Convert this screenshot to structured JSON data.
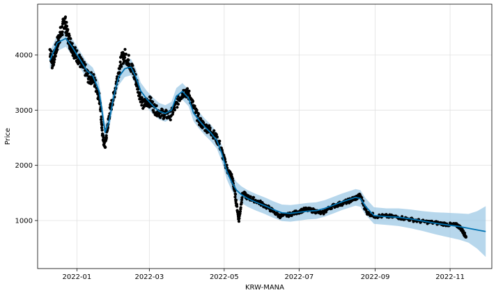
{
  "chart_data": {
    "type": "line",
    "title": "",
    "xlabel": "KRW-MANA",
    "ylabel": "Price",
    "x_tick_labels": [
      "2022-01",
      "2022-03",
      "2022-05",
      "2022-07",
      "2022-09",
      "2022-11"
    ],
    "x_tick_dates": [
      "2022-01-01",
      "2022-03-01",
      "2022-05-01",
      "2022-07-01",
      "2022-09-01",
      "2022-11-01"
    ],
    "y_ticks": [
      1000,
      2000,
      3000,
      4000
    ],
    "xlim": [
      "2021-11-30",
      "2022-12-05"
    ],
    "ylim": [
      130,
      4920
    ],
    "grid": true,
    "colors": {
      "forecast": "#0072B2",
      "band": "#9fc9e6",
      "observed": "#000000",
      "grid": "#e0e0e0",
      "axes": "#000000"
    },
    "series": [
      {
        "role": "forecast",
        "x": [
          "2021-12-10",
          "2021-12-16",
          "2021-12-23",
          "2021-12-28",
          "2022-01-04",
          "2022-01-09",
          "2022-01-14",
          "2022-01-19",
          "2022-01-22",
          "2022-01-24",
          "2022-01-27",
          "2022-01-31",
          "2022-02-04",
          "2022-02-09",
          "2022-02-14",
          "2022-02-18",
          "2022-02-22",
          "2022-02-27",
          "2022-03-04",
          "2022-03-09",
          "2022-03-14",
          "2022-03-19",
          "2022-03-23",
          "2022-03-28",
          "2022-04-02",
          "2022-04-06",
          "2022-04-10",
          "2022-04-15",
          "2022-04-20",
          "2022-04-25",
          "2022-04-29",
          "2022-05-03",
          "2022-05-07",
          "2022-05-11",
          "2022-05-15",
          "2022-05-20",
          "2022-05-27",
          "2022-06-03",
          "2022-06-10",
          "2022-06-17",
          "2022-06-24",
          "2022-07-01",
          "2022-07-08",
          "2022-07-15",
          "2022-07-22",
          "2022-07-29",
          "2022-08-05",
          "2022-08-12",
          "2022-08-16",
          "2022-08-20",
          "2022-08-24",
          "2022-08-31",
          "2022-09-10",
          "2022-09-20",
          "2022-09-30",
          "2022-10-10",
          "2022-10-20",
          "2022-10-30",
          "2022-11-09",
          "2022-11-16",
          "2022-11-23",
          "2022-11-30"
        ],
        "y": [
          3900,
          4220,
          4300,
          4150,
          3900,
          3720,
          3620,
          3350,
          2900,
          2600,
          2780,
          3250,
          3600,
          3750,
          3780,
          3600,
          3350,
          3200,
          3080,
          2980,
          2940,
          3000,
          3250,
          3340,
          3220,
          2950,
          2830,
          2700,
          2590,
          2450,
          2220,
          1900,
          1700,
          1550,
          1470,
          1400,
          1330,
          1270,
          1200,
          1140,
          1130,
          1150,
          1170,
          1180,
          1220,
          1280,
          1340,
          1390,
          1420,
          1400,
          1260,
          1090,
          1070,
          1060,
          1030,
          990,
          950,
          920,
          890,
          860,
          830,
          800
        ]
      },
      {
        "role": "uncertainty-upper",
        "x": [
          "2021-12-10",
          "2021-12-16",
          "2021-12-23",
          "2021-12-28",
          "2022-01-04",
          "2022-01-09",
          "2022-01-14",
          "2022-01-19",
          "2022-01-22",
          "2022-01-24",
          "2022-01-27",
          "2022-01-31",
          "2022-02-04",
          "2022-02-09",
          "2022-02-14",
          "2022-02-18",
          "2022-02-22",
          "2022-02-27",
          "2022-03-04",
          "2022-03-09",
          "2022-03-14",
          "2022-03-19",
          "2022-03-23",
          "2022-03-28",
          "2022-04-02",
          "2022-04-06",
          "2022-04-10",
          "2022-04-15",
          "2022-04-20",
          "2022-04-25",
          "2022-04-29",
          "2022-05-03",
          "2022-05-07",
          "2022-05-11",
          "2022-05-15",
          "2022-05-20",
          "2022-05-27",
          "2022-06-03",
          "2022-06-10",
          "2022-06-17",
          "2022-06-24",
          "2022-07-01",
          "2022-07-08",
          "2022-07-15",
          "2022-07-22",
          "2022-07-29",
          "2022-08-05",
          "2022-08-12",
          "2022-08-16",
          "2022-08-20",
          "2022-08-24",
          "2022-08-31",
          "2022-09-10",
          "2022-09-20",
          "2022-09-30",
          "2022-10-10",
          "2022-10-20",
          "2022-10-30",
          "2022-11-09",
          "2022-11-16",
          "2022-11-23",
          "2022-11-30"
        ],
        "y": [
          4050,
          4370,
          4450,
          4300,
          4050,
          3870,
          3770,
          3500,
          3050,
          2750,
          2930,
          3400,
          3750,
          3900,
          3930,
          3750,
          3500,
          3350,
          3230,
          3130,
          3090,
          3150,
          3400,
          3490,
          3370,
          3100,
          2980,
          2850,
          2740,
          2600,
          2370,
          2050,
          1850,
          1700,
          1620,
          1550,
          1480,
          1420,
          1350,
          1290,
          1280,
          1300,
          1320,
          1330,
          1370,
          1430,
          1490,
          1540,
          1570,
          1550,
          1410,
          1240,
          1220,
          1220,
          1200,
          1170,
          1150,
          1140,
          1130,
          1120,
          1170,
          1260
        ]
      },
      {
        "role": "uncertainty-lower",
        "x": [
          "2021-12-10",
          "2021-12-16",
          "2021-12-23",
          "2021-12-28",
          "2022-01-04",
          "2022-01-09",
          "2022-01-14",
          "2022-01-19",
          "2022-01-22",
          "2022-01-24",
          "2022-01-27",
          "2022-01-31",
          "2022-02-04",
          "2022-02-09",
          "2022-02-14",
          "2022-02-18",
          "2022-02-22",
          "2022-02-27",
          "2022-03-04",
          "2022-03-09",
          "2022-03-14",
          "2022-03-19",
          "2022-03-23",
          "2022-03-28",
          "2022-04-02",
          "2022-04-06",
          "2022-04-10",
          "2022-04-15",
          "2022-04-20",
          "2022-04-25",
          "2022-04-29",
          "2022-05-03",
          "2022-05-07",
          "2022-05-11",
          "2022-05-15",
          "2022-05-20",
          "2022-05-27",
          "2022-06-03",
          "2022-06-10",
          "2022-06-17",
          "2022-06-24",
          "2022-07-01",
          "2022-07-08",
          "2022-07-15",
          "2022-07-22",
          "2022-07-29",
          "2022-08-05",
          "2022-08-12",
          "2022-08-16",
          "2022-08-20",
          "2022-08-24",
          "2022-08-31",
          "2022-09-10",
          "2022-09-20",
          "2022-09-30",
          "2022-10-10",
          "2022-10-20",
          "2022-10-30",
          "2022-11-09",
          "2022-11-16",
          "2022-11-23",
          "2022-11-30"
        ],
        "y": [
          3750,
          4070,
          4150,
          4000,
          3750,
          3570,
          3470,
          3200,
          2750,
          2450,
          2630,
          3100,
          3450,
          3600,
          3630,
          3450,
          3200,
          3050,
          2930,
          2830,
          2790,
          2850,
          3100,
          3190,
          3070,
          2800,
          2680,
          2550,
          2440,
          2300,
          2070,
          1750,
          1550,
          1400,
          1320,
          1250,
          1180,
          1120,
          1050,
          990,
          980,
          1000,
          1020,
          1030,
          1070,
          1130,
          1190,
          1240,
          1270,
          1250,
          1110,
          940,
          920,
          900,
          860,
          810,
          750,
          700,
          650,
          600,
          490,
          340
        ]
      },
      {
        "role": "observed",
        "x": [
          "2021-12-10",
          "2021-12-12",
          "2021-12-14",
          "2021-12-16",
          "2021-12-18",
          "2021-12-20",
          "2021-12-22",
          "2021-12-24",
          "2021-12-26",
          "2021-12-28",
          "2021-12-30",
          "2022-01-02",
          "2022-01-05",
          "2022-01-08",
          "2022-01-11",
          "2022-01-14",
          "2022-01-17",
          "2022-01-20",
          "2022-01-22",
          "2022-01-24",
          "2022-01-26",
          "2022-01-28",
          "2022-01-31",
          "2022-02-03",
          "2022-02-06",
          "2022-02-09",
          "2022-02-12",
          "2022-02-15",
          "2022-02-18",
          "2022-02-21",
          "2022-02-24",
          "2022-02-27",
          "2022-03-02",
          "2022-03-06",
          "2022-03-10",
          "2022-03-14",
          "2022-03-18",
          "2022-03-22",
          "2022-03-26",
          "2022-03-30",
          "2022-04-03",
          "2022-04-07",
          "2022-04-11",
          "2022-04-15",
          "2022-04-19",
          "2022-04-23",
          "2022-04-27",
          "2022-05-01",
          "2022-05-04",
          "2022-05-07",
          "2022-05-09",
          "2022-05-11",
          "2022-05-13",
          "2022-05-16",
          "2022-05-20",
          "2022-05-25",
          "2022-06-01",
          "2022-06-08",
          "2022-06-15",
          "2022-06-22",
          "2022-06-29",
          "2022-07-06",
          "2022-07-13",
          "2022-07-20",
          "2022-07-27",
          "2022-08-03",
          "2022-08-10",
          "2022-08-15",
          "2022-08-20",
          "2022-08-25",
          "2022-09-01",
          "2022-09-10",
          "2022-09-20",
          "2022-09-30",
          "2022-10-10",
          "2022-10-20",
          "2022-10-30",
          "2022-11-06",
          "2022-11-09",
          "2022-11-12",
          "2022-11-14"
        ],
        "y": [
          4100,
          3850,
          4000,
          4200,
          4350,
          4450,
          4650,
          4400,
          4250,
          4150,
          4050,
          3950,
          3820,
          3720,
          3560,
          3600,
          3400,
          3150,
          2500,
          2350,
          2700,
          3000,
          3250,
          3600,
          3900,
          4000,
          3900,
          3750,
          3550,
          3300,
          3100,
          3150,
          3150,
          3000,
          2950,
          2920,
          2900,
          3050,
          3250,
          3350,
          3250,
          3000,
          2800,
          2700,
          2650,
          2550,
          2400,
          2100,
          1900,
          1800,
          1600,
          1300,
          1000,
          1500,
          1420,
          1380,
          1300,
          1200,
          1080,
          1100,
          1150,
          1200,
          1180,
          1130,
          1250,
          1300,
          1350,
          1400,
          1450,
          1150,
          1080,
          1080,
          1060,
          1020,
          980,
          960,
          930,
          920,
          880,
          780,
          700
        ]
      }
    ]
  }
}
